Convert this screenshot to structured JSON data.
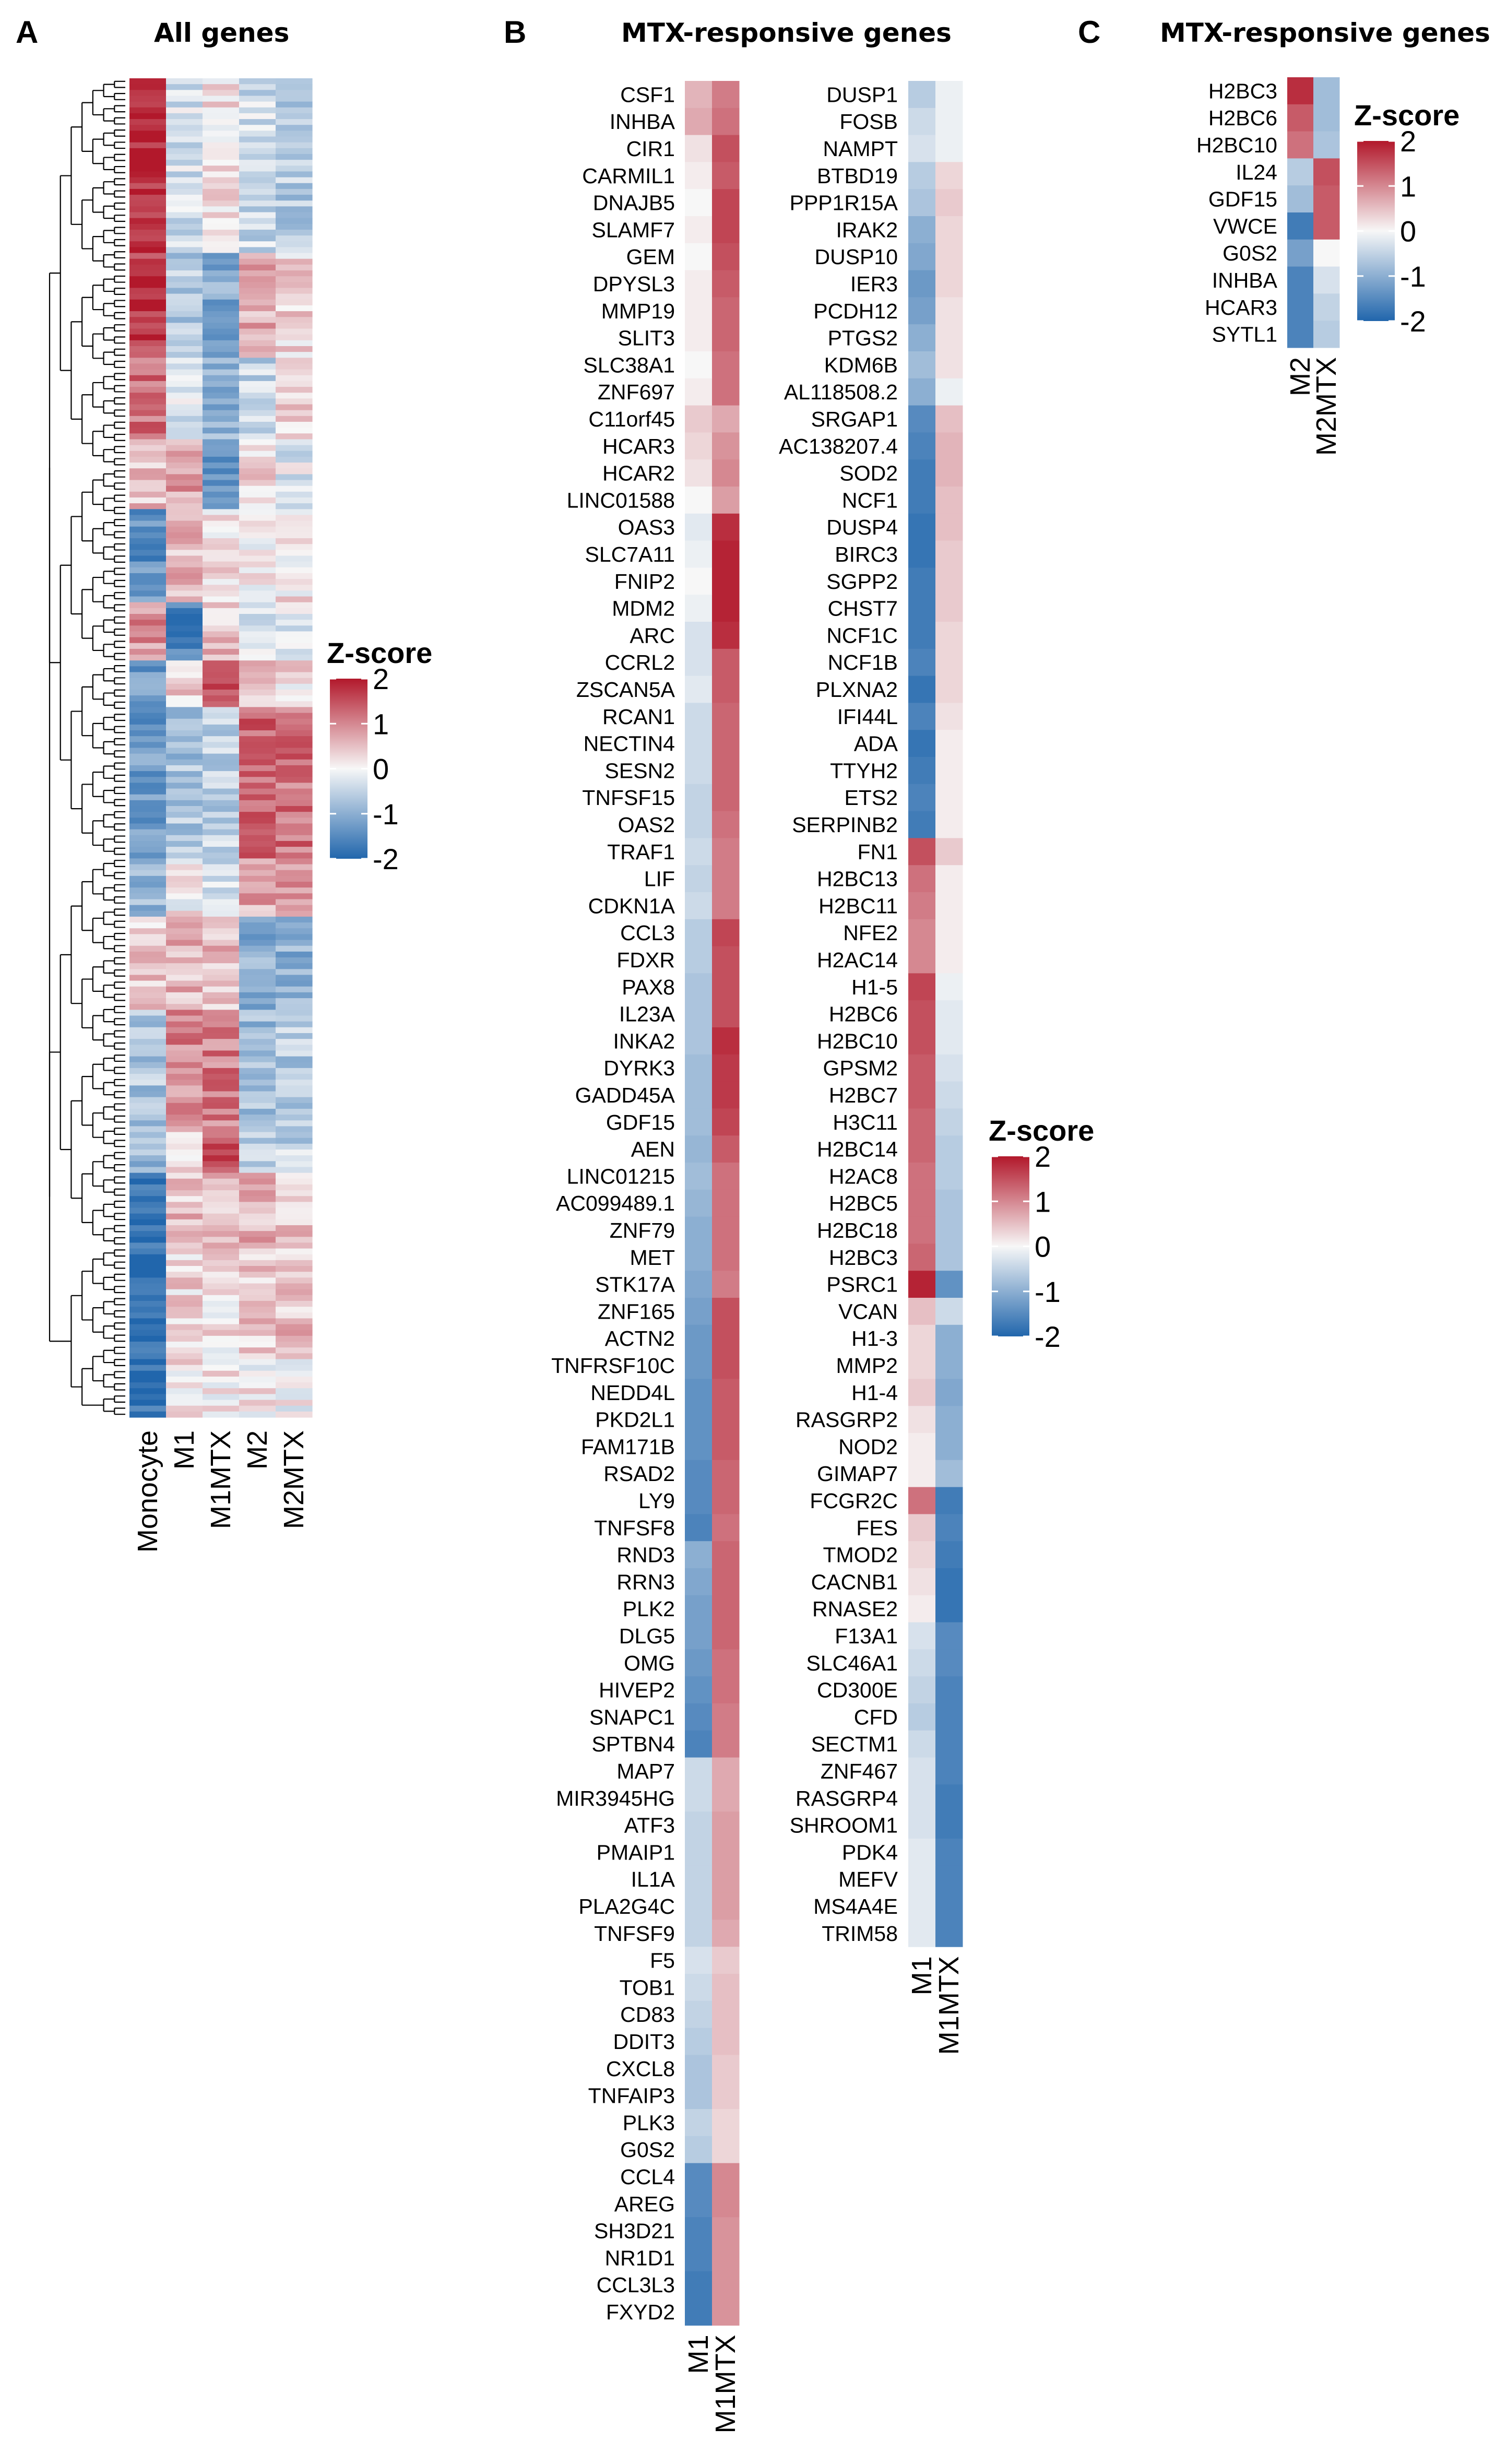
{
  "chart_data": [
    {
      "type": "heatmap",
      "panel": "A",
      "title": "All genes",
      "columns": [
        "Monocyte",
        "M1",
        "M1MTX",
        "M2",
        "M2MTX"
      ],
      "row_blocks": [
        {
          "rows": 30,
          "values": [
            1.9,
            -0.3,
            0.2,
            -0.4,
            -0.6
          ]
        },
        {
          "rows": 18,
          "values": [
            1.7,
            -0.6,
            -1.1,
            0.7,
            0.3
          ]
        },
        {
          "rows": 14,
          "values": [
            1.2,
            -0.3,
            -1.0,
            -0.5,
            0.4
          ]
        },
        {
          "rows": 12,
          "values": [
            0.5,
            0.8,
            -1.2,
            0.3,
            -0.2
          ]
        },
        {
          "rows": 16,
          "values": [
            -1.4,
            0.6,
            0.2,
            0.1,
            0.2
          ]
        },
        {
          "rows": 10,
          "values": [
            0.9,
            -1.5,
            0.5,
            -0.3,
            -0.2
          ]
        },
        {
          "rows": 8,
          "values": [
            -1.2,
            0.3,
            1.6,
            0.4,
            0.2
          ]
        },
        {
          "rows": 26,
          "values": [
            -1.3,
            -0.7,
            -0.5,
            1.3,
            1.2
          ]
        },
        {
          "rows": 10,
          "values": [
            -0.9,
            0.1,
            -0.4,
            0.7,
            0.9
          ]
        },
        {
          "rows": 16,
          "values": [
            0.4,
            0.6,
            0.5,
            -1.0,
            -1.0
          ]
        },
        {
          "rows": 20,
          "values": [
            -0.7,
            1.0,
            1.1,
            -0.8,
            -0.6
          ]
        },
        {
          "rows": 8,
          "values": [
            -0.9,
            0.4,
            1.5,
            -0.6,
            -0.5
          ]
        },
        {
          "rows": 14,
          "values": [
            -1.9,
            0.5,
            0.6,
            0.6,
            0.4
          ]
        },
        {
          "rows": 18,
          "values": [
            -1.9,
            0.3,
            0.2,
            0.4,
            0.5
          ]
        },
        {
          "rows": 10,
          "values": [
            -1.9,
            0.2,
            0.1,
            0.1,
            0.0
          ]
        }
      ],
      "legend": {
        "title": "Z-score",
        "ticks": [
          "2",
          "1",
          "0",
          "-1",
          "-2"
        ],
        "position": "right"
      },
      "dendrogram": "rows",
      "color_scale": {
        "min": -2,
        "max": 2,
        "low": "#2166ac",
        "mid": "#f7f7f7",
        "high": "#b2182b"
      }
    },
    {
      "type": "heatmap",
      "panel": "B",
      "title": "MTX-responsive genes",
      "columns": [
        "M1",
        "M1MTX"
      ],
      "left_block": {
        "genes": [
          "CSF1",
          "INHBA",
          "CIR1",
          "CARMIL1",
          "DNAJB5",
          "SLAMF7",
          "GEM",
          "DPYSL3",
          "MMP19",
          "SLIT3",
          "SLC38A1",
          "ZNF697",
          "C11orf45",
          "HCAR3",
          "HCAR2",
          "LINC01588",
          "OAS3",
          "SLC7A11",
          "FNIP2",
          "MDM2",
          "ARC",
          "CCRL2",
          "ZSCAN5A",
          "RCAN1",
          "NECTIN4",
          "SESN2",
          "TNFSF15",
          "OAS2",
          "TRAF1",
          "LIF",
          "CDKN1A",
          "CCL3",
          "FDXR",
          "PAX8",
          "IL23A",
          "INKA2",
          "DYRK3",
          "GADD45A",
          "GDF15",
          "AEN",
          "LINC01215",
          "AC099489.1",
          "ZNF79",
          "MET",
          "STK17A",
          "ZNF165",
          "ACTN2",
          "TNFRSF10C",
          "NEDD4L",
          "PKD2L1",
          "FAM171B",
          "RSAD2",
          "LY9",
          "TNFSF8",
          "RND3",
          "RRN3",
          "PLK2",
          "DLG5",
          "OMG",
          "HIVEP2",
          "SNAPC1",
          "SPTBN4",
          "MAP7",
          "MIR3945HG",
          "ATF3",
          "PMAIP1",
          "IL1A",
          "PLA2G4C",
          "TNFSF9",
          "F5",
          "TOB1",
          "CD83",
          "DDIT3",
          "CXCL8",
          "TNFAIP3",
          "PLK3",
          "G0S2",
          "CCL4",
          "AREG",
          "SH3D21",
          "NR1D1",
          "CCL3L3",
          "FXYD2"
        ],
        "M1": [
          0.6,
          0.7,
          0.2,
          0.1,
          0.0,
          0.1,
          0.0,
          0.1,
          0.1,
          0.1,
          0.0,
          0.1,
          0.4,
          0.3,
          0.2,
          0.0,
          -0.2,
          -0.1,
          0.0,
          -0.1,
          -0.3,
          -0.3,
          -0.2,
          -0.4,
          -0.4,
          -0.4,
          -0.5,
          -0.5,
          -0.4,
          -0.5,
          -0.4,
          -0.6,
          -0.6,
          -0.7,
          -0.7,
          -0.7,
          -0.8,
          -0.8,
          -0.8,
          -0.9,
          -0.8,
          -0.9,
          -1.0,
          -1.0,
          -1.1,
          -1.2,
          -1.3,
          -1.3,
          -1.4,
          -1.4,
          -1.4,
          -1.5,
          -1.5,
          -1.6,
          -1.0,
          -1.1,
          -1.2,
          -1.2,
          -1.3,
          -1.4,
          -1.5,
          -1.6,
          -0.4,
          -0.4,
          -0.5,
          -0.5,
          -0.5,
          -0.5,
          -0.5,
          -0.3,
          -0.4,
          -0.5,
          -0.6,
          -0.7,
          -0.7,
          -0.5,
          -0.6,
          -1.5,
          -1.5,
          -1.6,
          -1.6,
          -1.7,
          -1.7
        ],
        "M1MTX": [
          1.1,
          1.2,
          1.5,
          1.4,
          1.6,
          1.6,
          1.5,
          1.4,
          1.3,
          1.3,
          1.2,
          1.2,
          0.7,
          0.9,
          1.0,
          0.8,
          1.8,
          1.9,
          1.9,
          1.9,
          1.8,
          1.4,
          1.4,
          1.3,
          1.3,
          1.3,
          1.3,
          1.2,
          1.1,
          1.1,
          1.1,
          1.6,
          1.5,
          1.5,
          1.5,
          1.8,
          1.7,
          1.7,
          1.6,
          1.4,
          1.2,
          1.2,
          1.2,
          1.2,
          1.1,
          1.5,
          1.5,
          1.5,
          1.4,
          1.4,
          1.4,
          1.3,
          1.3,
          1.2,
          1.3,
          1.3,
          1.3,
          1.3,
          1.2,
          1.2,
          1.1,
          1.1,
          0.7,
          0.7,
          0.8,
          0.8,
          0.8,
          0.8,
          0.7,
          0.4,
          0.5,
          0.5,
          0.5,
          0.4,
          0.4,
          0.3,
          0.3,
          1.0,
          1.0,
          0.9,
          0.9,
          0.9,
          0.9
        ]
      },
      "right_block": {
        "genes": [
          "DUSP1",
          "FOSB",
          "NAMPT",
          "BTBD19",
          "PPP1R15A",
          "IRAK2",
          "DUSP10",
          "IER3",
          "PCDH12",
          "PTGS2",
          "KDM6B",
          "AL118508.2",
          "SRGAP1",
          "AC138207.4",
          "SOD2",
          "NCF1",
          "DUSP4",
          "BIRC3",
          "SGPP2",
          "CHST7",
          "NCF1C",
          "NCF1B",
          "PLXNA2",
          "IFI44L",
          "ADA",
          "TTYH2",
          "ETS2",
          "SERPINB2",
          "FN1",
          "H2BC13",
          "H2BC11",
          "NFE2",
          "H2AC14",
          "H1-5",
          "H2BC6",
          "H2BC10",
          "GPSM2",
          "H2BC7",
          "H3C11",
          "H2BC14",
          "H2AC8",
          "H2BC5",
          "H2BC18",
          "H2BC3",
          "PSRC1",
          "VCAN",
          "H1-3",
          "MMP2",
          "H1-4",
          "RASGRP2",
          "NOD2",
          "GIMAP7",
          "FCGR2C",
          "FES",
          "TMOD2",
          "CACNB1",
          "RNASE2",
          "F13A1",
          "SLC46A1",
          "CD300E",
          "CFD",
          "SECTM1",
          "ZNF467",
          "RASGRP4",
          "SHROOM1",
          "PDK4",
          "MEFV",
          "MS4A4E",
          "TRIM58"
        ],
        "M1": [
          -0.6,
          -0.4,
          -0.3,
          -0.6,
          -0.7,
          -1.0,
          -1.1,
          -1.3,
          -1.2,
          -1.0,
          -0.8,
          -1.0,
          -1.5,
          -1.6,
          -1.7,
          -1.7,
          -1.8,
          -1.8,
          -1.7,
          -1.7,
          -1.7,
          -1.6,
          -1.8,
          -1.6,
          -1.8,
          -1.7,
          -1.6,
          -1.7,
          1.5,
          1.2,
          1.1,
          1.0,
          1.0,
          1.6,
          1.5,
          1.5,
          1.4,
          1.4,
          1.3,
          1.3,
          1.2,
          1.2,
          1.2,
          1.3,
          1.9,
          0.5,
          0.3,
          0.3,
          0.4,
          0.2,
          0.1,
          0.1,
          1.2,
          0.4,
          0.3,
          0.2,
          0.1,
          -0.3,
          -0.4,
          -0.5,
          -0.6,
          -0.4,
          -0.3,
          -0.3,
          -0.3,
          -0.2,
          -0.2,
          -0.2,
          -0.2
        ],
        "M1MTX": [
          -0.1,
          -0.1,
          -0.1,
          0.3,
          0.4,
          0.3,
          0.3,
          0.3,
          0.2,
          0.2,
          0.2,
          -0.1,
          0.5,
          0.6,
          0.6,
          0.5,
          0.5,
          0.4,
          0.4,
          0.4,
          0.3,
          0.3,
          0.3,
          0.2,
          0.1,
          0.1,
          0.1,
          0.1,
          0.4,
          0.1,
          0.1,
          0.1,
          0.1,
          -0.1,
          -0.2,
          -0.2,
          -0.3,
          -0.4,
          -0.5,
          -0.6,
          -0.6,
          -0.7,
          -0.7,
          -0.7,
          -1.4,
          -0.4,
          -1.0,
          -1.0,
          -1.1,
          -1.0,
          -1.0,
          -0.8,
          -1.7,
          -1.6,
          -1.7,
          -1.8,
          -1.8,
          -1.5,
          -1.5,
          -1.6,
          -1.6,
          -1.6,
          -1.6,
          -1.7,
          -1.7,
          -1.6,
          -1.6,
          -1.6,
          -1.6
        ]
      },
      "legend": {
        "title": "Z-score",
        "ticks": [
          "2",
          "1",
          "0",
          "-1",
          "-2"
        ],
        "position": "right"
      },
      "color_scale": {
        "min": -2,
        "max": 2,
        "low": "#2166ac",
        "mid": "#f7f7f7",
        "high": "#b2182b"
      }
    },
    {
      "type": "heatmap",
      "panel": "C",
      "title": "MTX-responsive genes",
      "columns": [
        "M2",
        "M2MTX"
      ],
      "genes": [
        "H2BC3",
        "H2BC6",
        "H2BC10",
        "IL24",
        "GDF15",
        "VWCE",
        "G0S2",
        "INHBA",
        "HCAR3",
        "SYTL1"
      ],
      "M2": [
        1.8,
        1.4,
        1.2,
        -0.6,
        -0.8,
        -1.7,
        -1.2,
        -1.6,
        -1.6,
        -1.6
      ],
      "M2MTX": [
        -0.8,
        -0.8,
        -0.7,
        1.5,
        1.4,
        1.4,
        0.0,
        -0.3,
        -0.5,
        -0.6
      ],
      "legend": {
        "title": "Z-score",
        "ticks": [
          "2",
          "1",
          "0",
          "-1",
          "-2"
        ],
        "position": "right"
      },
      "color_scale": {
        "min": -2,
        "max": 2,
        "low": "#2166ac",
        "mid": "#f7f7f7",
        "high": "#b2182b"
      }
    }
  ],
  "panels": {
    "a": {
      "letter": "A",
      "title": "All genes"
    },
    "b": {
      "letter": "B",
      "title": "MTX-responsive genes"
    },
    "c": {
      "letter": "C",
      "title": "MTX-responsive genes"
    }
  }
}
